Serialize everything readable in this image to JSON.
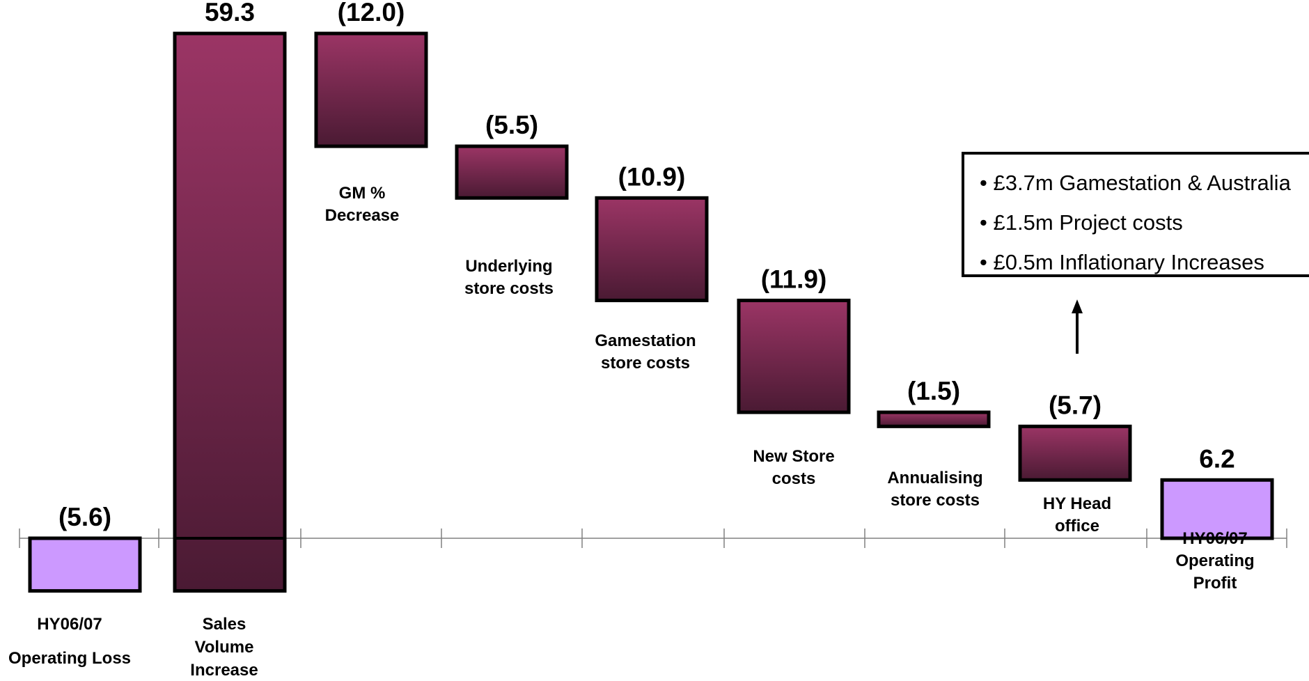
{
  "chart_data": {
    "type": "waterfall",
    "categories": [
      [
        "HY06/07",
        "Operating Loss"
      ],
      [
        "Sales",
        "Volume",
        "Increase"
      ],
      [
        "GM %",
        "Decrease"
      ],
      [
        "Underlying",
        "store costs"
      ],
      [
        "Gamestation",
        "store costs"
      ],
      [
        "New Store",
        "costs"
      ],
      [
        "Annualising",
        "store costs"
      ],
      [
        "HY Head",
        "office"
      ],
      [
        "HY06/07",
        "Operating",
        "Profit"
      ]
    ],
    "values": [
      -5.6,
      59.3,
      -12.0,
      -5.5,
      -10.9,
      -11.9,
      -1.5,
      -5.7,
      6.2
    ],
    "value_labels": [
      "(5.6)",
      "59.3",
      "(12.0)",
      "(5.5)",
      "(10.9)",
      "(11.9)",
      "(1.5)",
      "(5.7)",
      "6.2"
    ],
    "bar_kinds": [
      "total",
      "delta",
      "delta",
      "delta",
      "delta",
      "delta",
      "delta",
      "delta",
      "total"
    ],
    "colors": {
      "total_fill": "#cc99ff",
      "delta_fill_top": "#9b3565",
      "delta_fill_bottom": "#4a1a33",
      "outline": "#000000",
      "axis": "#808080"
    },
    "annotation": {
      "attached_to": "HY Head office",
      "items": [
        "£3.7m Gamestation & Australia",
        "£1.5m Project costs",
        "£0.5m Inflationary Increases"
      ]
    },
    "title": "",
    "xlabel": "",
    "ylabel": ""
  },
  "note": {
    "bullet": "•",
    "lines": [
      "£3.7m Gamestation & Australia",
      "£1.5m Project costs",
      "£0.5m Inflationary Increases"
    ]
  }
}
